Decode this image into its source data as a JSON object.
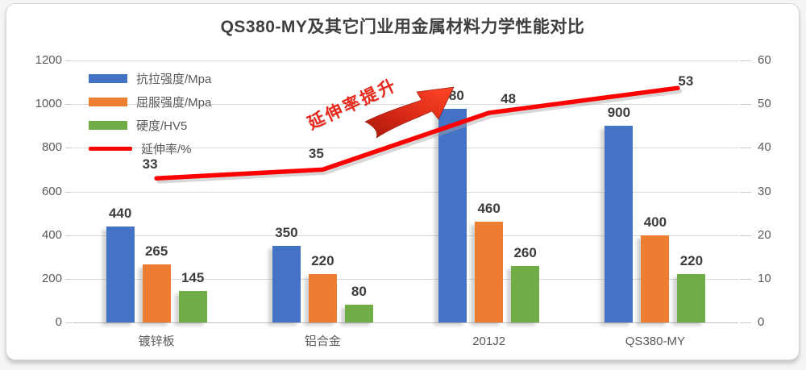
{
  "title": "QS380-MY及其它门业用金属材料力学性能对比",
  "annotation": {
    "text": "延伸率提升",
    "color": "#e8291c"
  },
  "colors": {
    "tensile_blue": "#4472C4",
    "yield_orange": "#ED7D31",
    "hardness_green": "#70AD47",
    "elongation_red": "#FE0000",
    "gridline": "#d9d9d9",
    "label_text": "#3d3d3d",
    "axis_text": "#595959"
  },
  "chart_data": {
    "type": "bar",
    "subtype": "grouped-bars-with-secondary-axis-line",
    "title": "QS380-MY及其它门业用金属材料力学性能对比",
    "categories": [
      "镀锌板",
      "铝合金",
      "201J2",
      "QS380-MY"
    ],
    "series": [
      {
        "name": "抗拉强度/Mpa",
        "kind": "bar",
        "color": "#4472C4",
        "axis": "left",
        "values": [
          440,
          350,
          980,
          900
        ]
      },
      {
        "name": "屈服强度/Mpa",
        "kind": "bar",
        "color": "#ED7D31",
        "axis": "left",
        "values": [
          265,
          220,
          460,
          400
        ]
      },
      {
        "name": "硬度/HV5",
        "kind": "bar",
        "color": "#70AD47",
        "axis": "left",
        "values": [
          145,
          80,
          260,
          220
        ]
      },
      {
        "name": "延伸率/%",
        "kind": "line",
        "color": "#FE0000",
        "axis": "right",
        "values": [
          33,
          35,
          48,
          53
        ]
      }
    ],
    "left_axis": {
      "min": 0,
      "max": 1200,
      "step": 200,
      "tick_labels": [
        "0",
        "200",
        "400",
        "600",
        "800",
        "1000",
        "1200"
      ]
    },
    "right_axis": {
      "min": 0,
      "max": 60,
      "step": 10,
      "tick_labels": [
        "0",
        "10",
        "20",
        "30",
        "40",
        "50",
        "60"
      ]
    },
    "data_labels_shown": true,
    "grid": true,
    "legend_position": "inside-top-left",
    "annotation": "延伸率提升"
  }
}
